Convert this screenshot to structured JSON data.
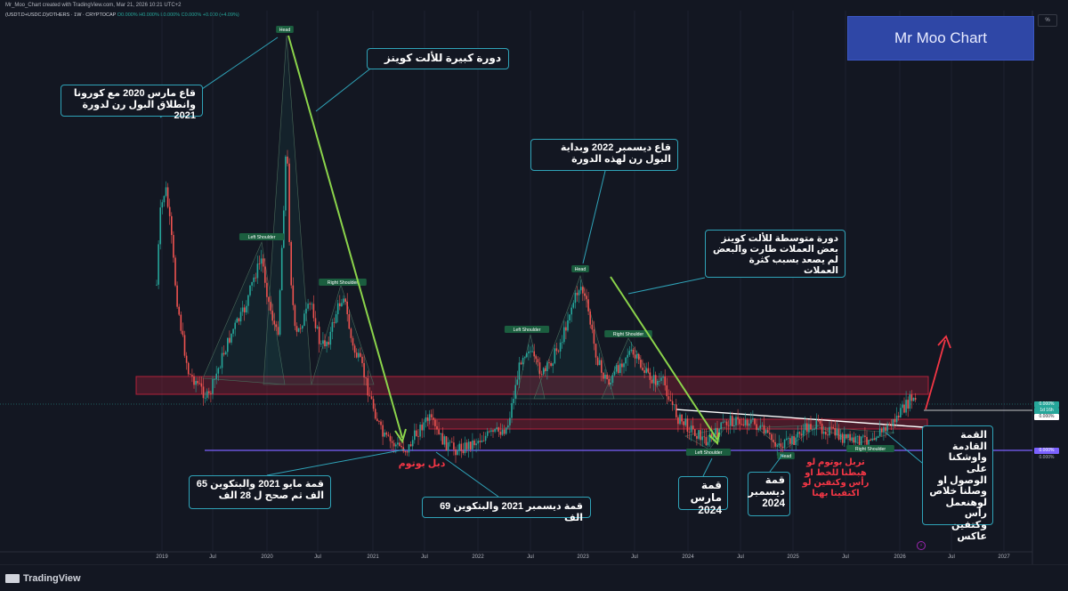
{
  "header": {
    "created_by": "Mr_Moo_Chart created with TradingView.com, Mar 21, 2026 10:21 UTC+2",
    "symbol": "(USDT.D+USDC.D)/OTHERS · 1W · CRYPTOCAP",
    "ohlc": "O0.000% H0.000% L0.000% C0.000% +0.000 (+4.09%)"
  },
  "brand": {
    "text": "Mr Moo Chart",
    "color": "#2f47a6"
  },
  "scale_button": {
    "label": "%"
  },
  "price_tags": [
    {
      "label": "0.000%",
      "sub": "1d 16h",
      "color": "#26a69a"
    },
    {
      "label": "0.000%",
      "color": "#ffffff"
    },
    {
      "label": "0.000%",
      "color": "#7b61ff"
    },
    {
      "label": "0.000%",
      "color": "#131722"
    }
  ],
  "colors": {
    "background": "#131722",
    "up": "#26a69a",
    "down": "#ef5350",
    "zone": "#b2223a",
    "arrow_green": "#8bd44b",
    "arrow_red": "#f23645",
    "support_line": "#7b61ff",
    "callout_border": "#2fa3b8"
  },
  "chart_data": {
    "type": "candlestick",
    "x_ticks": [
      "2019",
      "Jul",
      "2020",
      "Jul",
      "2021",
      "Jul",
      "2022",
      "Jul",
      "2023",
      "Jul",
      "2024",
      "Jul",
      "2025",
      "Jul",
      "2026",
      "Jul",
      "2027"
    ],
    "pattern_labels": [
      "Head",
      "Left Shoulder",
      "Right Shoulder",
      "Left Shoulder",
      "Head",
      "Right Shoulder",
      "Left Shoulder",
      "Head",
      "Right Shoulder"
    ],
    "annotations": {
      "big_cycle": "دورة كبيرة للألت كوينز",
      "march_2020": "قاع مارس 2020 مع كورونا وانطلاق البول رن لدورة 2021",
      "dec_2022": "قاع ديسمبر 2022 وبداية البول رن لهذه الدورة",
      "medium_cycle": "دورة متوسطة للألت كوينز بعض العملات طارت والبعض لم يصعد بسبب كثرة العملات",
      "may_2021": "قمة مايو 2021 والبتكوين 65 الف ثم صحح ل 28 الف",
      "double_bottom": "دبل بوتوم",
      "dec_2021": "قمة ديسمبر 2021 والبتكوين 69 الف",
      "march_2024": "قمة مارس 2024",
      "dec_2024": "قمة ديسمبر 2024",
      "triple_bottom": "تربل بوتوم لو هبطنا للخط او رأس وكتفين لو اكتفينا بهنا",
      "next_top": "القمة القادمة واوشكنا على الوصول او وصلنا خلاص لوهنعمل رأس وكتفين عاكس"
    },
    "series": [
      {
        "close": [
          40,
          65,
          80,
          88,
          70,
          60,
          55,
          45,
          42,
          38,
          35,
          42,
          50,
          55,
          60,
          65,
          70,
          80,
          95,
          78,
          60,
          40,
          32,
          25,
          22,
          26,
          28,
          27,
          30,
          35,
          40,
          50,
          60,
          70,
          72,
          65,
          60,
          55,
          48,
          40,
          35,
          37,
          36,
          34,
          38,
          39,
          35,
          32,
          30,
          28,
          27,
          31,
          30,
          29,
          33,
          34,
          36,
          40,
          42,
          44
        ]
      }
    ]
  },
  "footer": {
    "brand": "TradingView"
  }
}
